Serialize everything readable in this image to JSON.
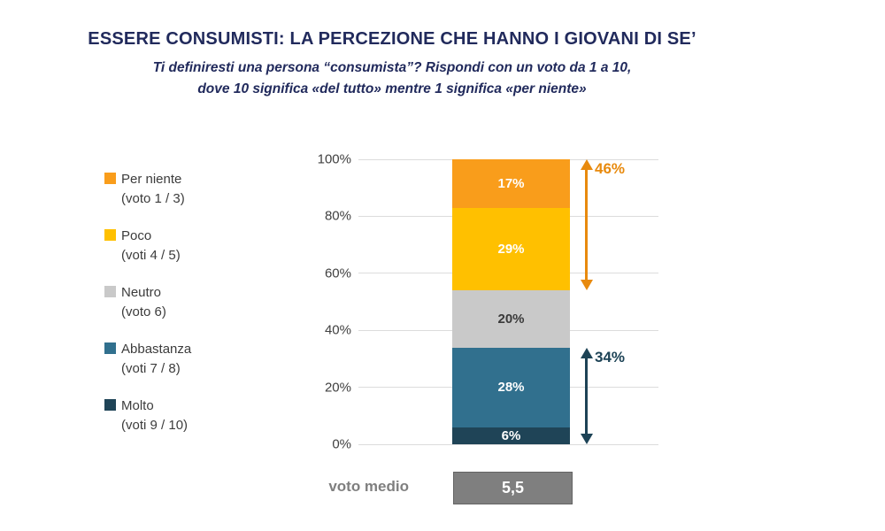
{
  "header": {
    "title": "ESSERE CONSUMISTI: LA PERCEZIONE CHE HANNO I GIOVANI DI SE’",
    "subtitle_line1": "Ti definiresti una persona “consumista”? Rispondi con un voto da 1 a 10,",
    "subtitle_line2": "dove 10 significa «del tutto» mentre 1 significa «per niente»"
  },
  "colors": {
    "title_navy": "#212A5C",
    "gridline": "#DCDCDC",
    "legend_text": "#3C3C3C",
    "average_gray": "#7F7F7F"
  },
  "chart_data": {
    "type": "bar",
    "stacked": true,
    "orientation": "vertical",
    "grid": true,
    "legend_position": "left",
    "ylim": [
      0,
      100
    ],
    "y_ticks": [
      "0%",
      "20%",
      "40%",
      "60%",
      "80%",
      "100%"
    ],
    "segments_top_to_bottom": [
      {
        "name": "Per niente",
        "votes": "(voto 1 / 3)",
        "value": 17,
        "label": "17%",
        "color": "#F99D1B",
        "text_color": "#FFFFFF"
      },
      {
        "name": "Poco",
        "votes": "(voti 4 / 5)",
        "value": 29,
        "label": "29%",
        "color": "#FFC000",
        "text_color": "#FFFFFF"
      },
      {
        "name": "Neutro",
        "votes": "(voto 6)",
        "value": 20,
        "label": "20%",
        "color": "#C9C9C9",
        "text_color": "#3A3A3A"
      },
      {
        "name": "Abbastanza",
        "votes": "(voti 7 / 8)",
        "value": 28,
        "label": "28%",
        "color": "#31708E",
        "text_color": "#FFFFFF"
      },
      {
        "name": "Molto",
        "votes": "(voti 9 / 10)",
        "value": 6,
        "label": "6%",
        "color": "#1F4457",
        "text_color": "#FFFFFF"
      }
    ],
    "annotations": [
      {
        "label": "46%",
        "from": 54,
        "to": 100,
        "color": "#E88A0E"
      },
      {
        "label": "34%",
        "from": 0,
        "to": 34,
        "color": "#1D4356"
      }
    ],
    "average": {
      "label": "voto medio",
      "value": "5,5",
      "box_color": "#7F7F7F"
    }
  }
}
